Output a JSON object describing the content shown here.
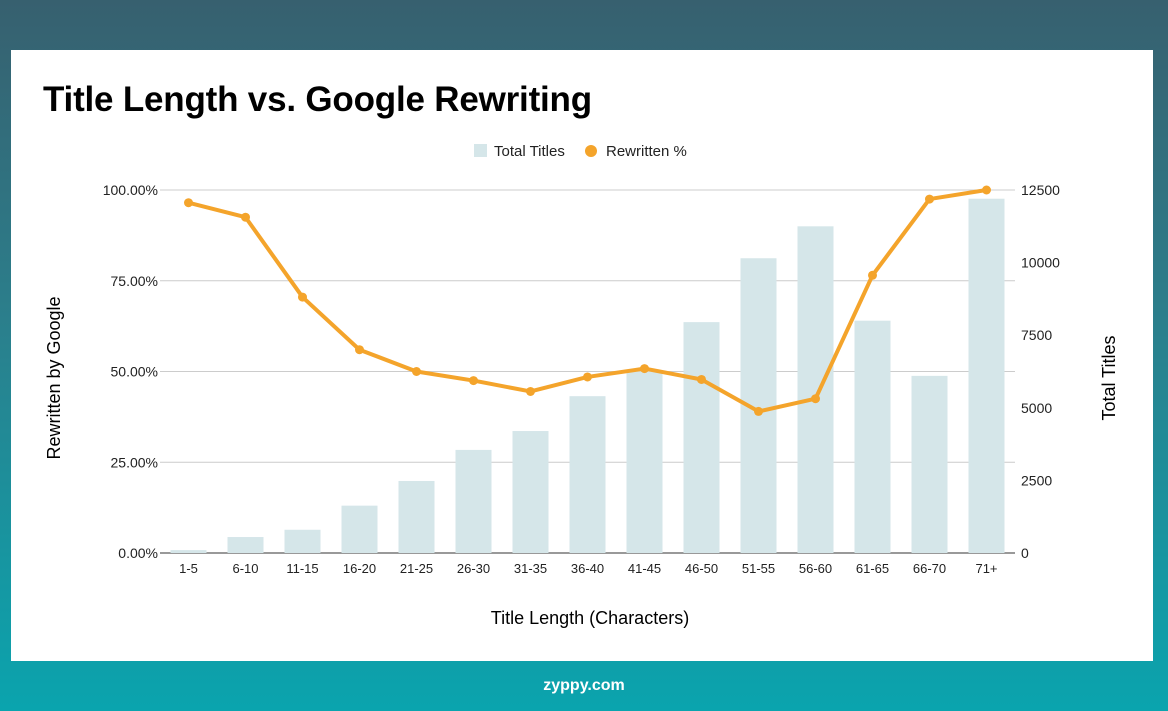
{
  "footer": {
    "brand": "zyppy.com"
  },
  "colors": {
    "bar": "#d5e6e9",
    "line": "#f4a42b",
    "grid": "#cccccc"
  },
  "chart_data": {
    "type": "bar",
    "title": "Title Length vs. Google Rewriting",
    "xlabel": "Title Length (Characters)",
    "ylabel": "Rewritten by Google",
    "y2label": "Total Titles",
    "categories": [
      "1-5",
      "6-10",
      "11-15",
      "16-20",
      "21-25",
      "26-30",
      "31-35",
      "36-40",
      "41-45",
      "46-50",
      "51-55",
      "56-60",
      "61-65",
      "66-70",
      "71+"
    ],
    "series": [
      {
        "name": "Total Titles",
        "type": "bar",
        "axis": "right",
        "values": [
          100,
          550,
          800,
          1630,
          2480,
          3550,
          4200,
          5400,
          6250,
          7950,
          10150,
          11250,
          8000,
          6100,
          12200
        ]
      },
      {
        "name": "Rewritten %",
        "type": "line",
        "axis": "left",
        "values": [
          96.5,
          92.5,
          70.5,
          56.0,
          50.0,
          47.5,
          44.5,
          48.5,
          50.8,
          47.8,
          39.0,
          42.5,
          76.5,
          97.5,
          100.0
        ]
      }
    ],
    "ylim": [
      0,
      100
    ],
    "y2lim": [
      0,
      12500
    ],
    "yticks": [
      "0.00%",
      "25.00%",
      "50.00%",
      "75.00%",
      "100.00%"
    ],
    "y2ticks": [
      "0",
      "2500",
      "5000",
      "7500",
      "10000",
      "12500"
    ],
    "grid": true,
    "legend": "top-center"
  }
}
